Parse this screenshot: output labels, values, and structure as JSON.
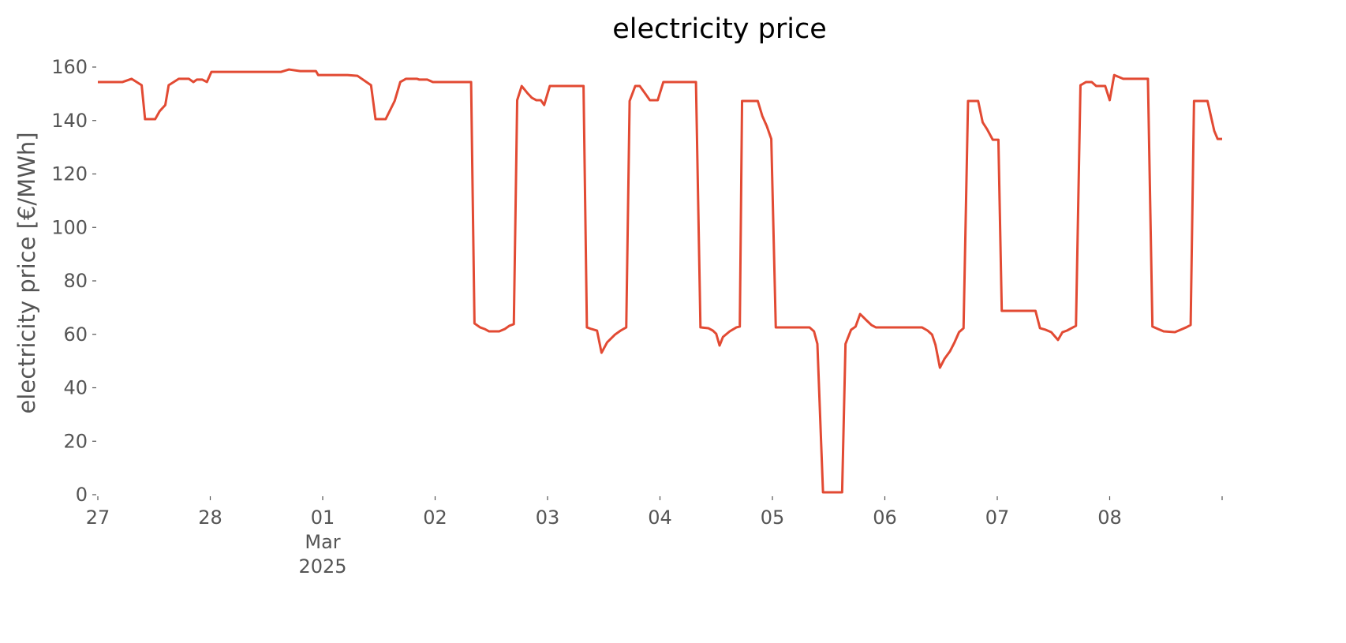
{
  "chart_data": {
    "type": "line",
    "title": "electricity price",
    "ylabel": "electricity price [€/MWh]",
    "color": "#e24a33",
    "grid": false,
    "xlim": [
      0,
      10
    ],
    "xticks": [
      {
        "value": 0,
        "label": "27"
      },
      {
        "value": 1,
        "label": "28"
      },
      {
        "value": 2,
        "label": "01\nMar\n2025"
      },
      {
        "value": 3,
        "label": "02"
      },
      {
        "value": 4,
        "label": "03"
      },
      {
        "value": 5,
        "label": "04"
      },
      {
        "value": 6,
        "label": "05"
      },
      {
        "value": 7,
        "label": "06"
      },
      {
        "value": 8,
        "label": "07"
      },
      {
        "value": 9,
        "label": "08"
      },
      {
        "value": 10,
        "label": null
      }
    ],
    "ylim": [
      0,
      160
    ],
    "yticks": [
      0,
      20,
      40,
      60,
      80,
      100,
      120,
      140,
      160
    ],
    "x": [
      0,
      0.22,
      0.3,
      0.39,
      0.42,
      0.51,
      0.55,
      0.6,
      0.63,
      0.72,
      0.81,
      0.85,
      0.88,
      0.93,
      0.97,
      1.01,
      1.63,
      1.7,
      1.8,
      1.94,
      1.96,
      2.22,
      2.31,
      2.43,
      2.47,
      2.56,
      2.64,
      2.69,
      2.74,
      2.84,
      2.86,
      2.93,
      2.98,
      3.32,
      3.35,
      3.4,
      3.44,
      3.48,
      3.57,
      3.62,
      3.66,
      3.7,
      3.73,
      3.77,
      3.82,
      3.86,
      3.9,
      3.94,
      3.97,
      4.02,
      4.32,
      4.35,
      4.39,
      4.44,
      4.48,
      4.53,
      4.6,
      4.65,
      4.7,
      4.73,
      4.78,
      4.82,
      4.87,
      4.91,
      4.98,
      5.03,
      5.32,
      5.36,
      5.43,
      5.47,
      5.5,
      5.53,
      5.56,
      5.62,
      5.68,
      5.71,
      5.73,
      5.87,
      5.91,
      5.95,
      5.99,
      6.03,
      6.33,
      6.37,
      6.4,
      6.45,
      6.62,
      6.65,
      6.7,
      6.74,
      6.78,
      6.83,
      6.88,
      6.92,
      7.33,
      7.38,
      7.42,
      7.45,
      7.49,
      7.53,
      7.58,
      7.62,
      7.66,
      7.7,
      7.74,
      7.83,
      7.87,
      7.91,
      7.96,
      8.01,
      8.04,
      8.34,
      8.38,
      8.43,
      8.48,
      8.54,
      8.58,
      8.62,
      8.66,
      8.7,
      8.74,
      8.79,
      8.84,
      8.88,
      8.96,
      9.0,
      9.04,
      9.12,
      9.34,
      9.38,
      9.43,
      9.48,
      9.58,
      9.63,
      9.68,
      9.72,
      9.75,
      9.87,
      9.93,
      9.96,
      10.0
    ],
    "values": [
      154.4,
      154.4,
      155.6,
      153.2,
      140.5,
      140.5,
      143.5,
      145.8,
      153.2,
      155.6,
      155.6,
      154.4,
      155.3,
      155.3,
      154.4,
      158.2,
      158.2,
      159.1,
      158.5,
      158.5,
      157.0,
      157.0,
      156.7,
      153.2,
      140.5,
      140.5,
      147.3,
      154.4,
      155.6,
      155.6,
      155.3,
      155.3,
      154.4,
      154.4,
      64.1,
      62.6,
      62.0,
      61.1,
      61.1,
      62.0,
      63.2,
      63.8,
      147.6,
      152.9,
      150.3,
      148.5,
      147.6,
      147.6,
      145.8,
      152.9,
      152.9,
      62.6,
      62.0,
      61.4,
      53.1,
      57.0,
      59.9,
      61.4,
      62.6,
      147.3,
      152.9,
      152.9,
      150.0,
      147.6,
      147.6,
      154.4,
      154.4,
      62.6,
      62.3,
      61.4,
      60.2,
      55.8,
      59.0,
      61.1,
      62.6,
      62.9,
      147.3,
      147.3,
      141.7,
      137.9,
      133.1,
      62.6,
      62.6,
      61.1,
      56.4,
      0.9,
      0.9,
      56.4,
      61.7,
      62.9,
      67.6,
      65.5,
      63.5,
      62.6,
      62.6,
      61.4,
      59.9,
      56.1,
      47.5,
      50.8,
      53.7,
      57.0,
      60.8,
      62.3,
      147.3,
      147.3,
      139.3,
      136.7,
      132.8,
      132.8,
      68.8,
      68.8,
      62.3,
      61.7,
      60.8,
      57.9,
      60.8,
      61.4,
      62.3,
      63.2,
      153.2,
      154.4,
      154.4,
      152.9,
      152.9,
      147.6,
      157.0,
      155.6,
      155.6,
      62.9,
      62.0,
      61.1,
      60.8,
      61.7,
      62.6,
      63.5,
      147.3,
      147.3,
      136.1,
      133.1,
      133.1
    ]
  }
}
